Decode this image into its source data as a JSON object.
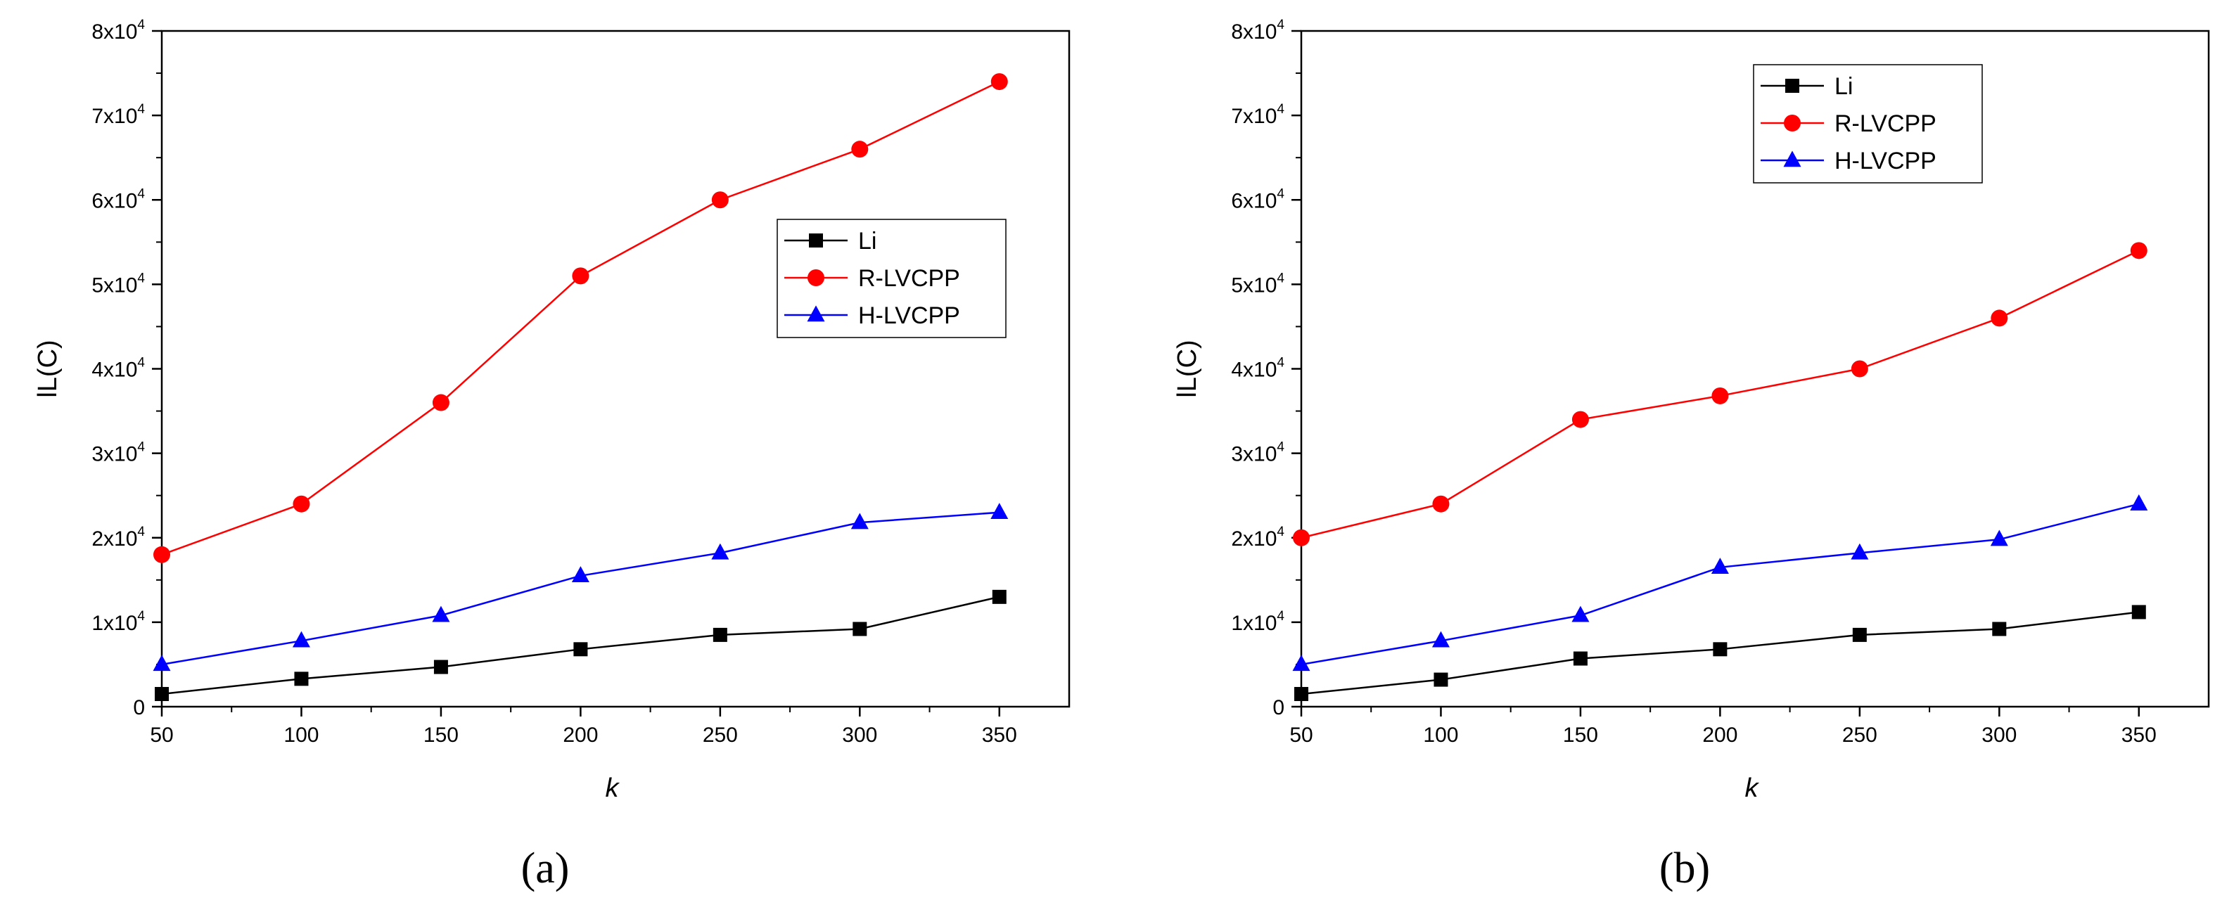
{
  "chart_data": [
    {
      "type": "line",
      "panel_label": "(a)",
      "xlabel": "k",
      "ylabel": "lL(C)",
      "x": [
        50,
        100,
        150,
        200,
        250,
        300,
        350
      ],
      "xticks": [
        "50",
        "100",
        "150",
        "200",
        "250",
        "300",
        "350"
      ],
      "xlim": [
        50,
        375
      ],
      "ylim": [
        0,
        80000
      ],
      "yticks": [
        {
          "value": 0,
          "mantissa": "0",
          "exp": ""
        },
        {
          "value": 10000,
          "mantissa": "1x10",
          "exp": "4"
        },
        {
          "value": 20000,
          "mantissa": "2x10",
          "exp": "4"
        },
        {
          "value": 30000,
          "mantissa": "3x10",
          "exp": "4"
        },
        {
          "value": 40000,
          "mantissa": "4x10",
          "exp": "4"
        },
        {
          "value": 50000,
          "mantissa": "5x10",
          "exp": "4"
        },
        {
          "value": 60000,
          "mantissa": "6x10",
          "exp": "4"
        },
        {
          "value": 70000,
          "mantissa": "7x10",
          "exp": "4"
        },
        {
          "value": 80000,
          "mantissa": "8x10",
          "exp": "4"
        }
      ],
      "legend_position": "center-right",
      "series": [
        {
          "name": "Li",
          "color": "#000000",
          "marker": "square",
          "values": [
            1500,
            3300,
            4700,
            6800,
            8500,
            9200,
            13000
          ]
        },
        {
          "name": "R-LVCPP",
          "color": "#ff0000",
          "marker": "circle",
          "values": [
            18000,
            24000,
            36000,
            51000,
            60000,
            66000,
            74000
          ]
        },
        {
          "name": "H-LVCPP",
          "color": "#0000ff",
          "marker": "triangle",
          "values": [
            5000,
            7800,
            10800,
            15500,
            18200,
            21800,
            23000
          ]
        }
      ]
    },
    {
      "type": "line",
      "panel_label": "(b)",
      "xlabel": "k",
      "ylabel": "lL(C)",
      "x": [
        50,
        100,
        150,
        200,
        250,
        300,
        350
      ],
      "xticks": [
        "50",
        "100",
        "150",
        "200",
        "250",
        "300",
        "350"
      ],
      "xlim": [
        50,
        375
      ],
      "ylim": [
        0,
        80000
      ],
      "yticks": [
        {
          "value": 0,
          "mantissa": "0",
          "exp": ""
        },
        {
          "value": 10000,
          "mantissa": "1x10",
          "exp": "4"
        },
        {
          "value": 20000,
          "mantissa": "2x10",
          "exp": "4"
        },
        {
          "value": 30000,
          "mantissa": "3x10",
          "exp": "4"
        },
        {
          "value": 40000,
          "mantissa": "4x10",
          "exp": "4"
        },
        {
          "value": 50000,
          "mantissa": "5x10",
          "exp": "4"
        },
        {
          "value": 60000,
          "mantissa": "6x10",
          "exp": "4"
        },
        {
          "value": 70000,
          "mantissa": "7x10",
          "exp": "4"
        },
        {
          "value": 80000,
          "mantissa": "8x10",
          "exp": "4"
        }
      ],
      "legend_position": "top-center",
      "series": [
        {
          "name": "Li",
          "color": "#000000",
          "marker": "square",
          "values": [
            1500,
            3200,
            5700,
            6800,
            8500,
            9200,
            11200
          ]
        },
        {
          "name": "R-LVCPP",
          "color": "#ff0000",
          "marker": "circle",
          "values": [
            20000,
            24000,
            34000,
            36800,
            40000,
            46000,
            54000
          ]
        },
        {
          "name": "H-LVCPP",
          "color": "#0000ff",
          "marker": "triangle",
          "values": [
            5000,
            7800,
            10800,
            16500,
            18200,
            19800,
            24000
          ]
        }
      ]
    }
  ]
}
